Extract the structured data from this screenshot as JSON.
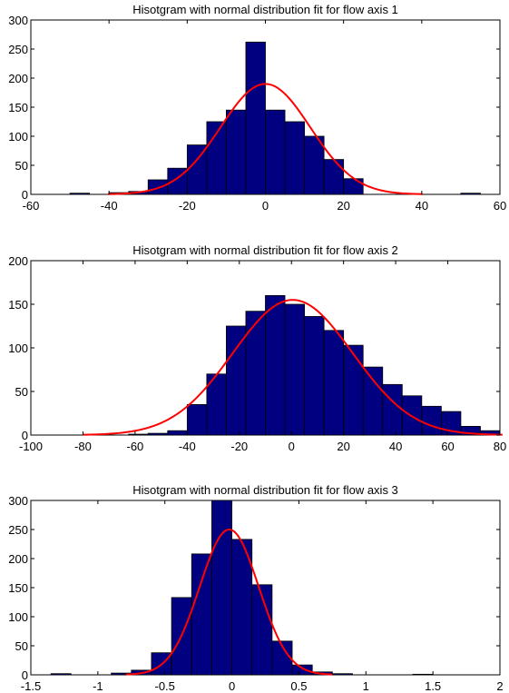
{
  "chart_data": [
    {
      "type": "bar",
      "title": "Hisotgram with normal distribution fit for flow axis 1",
      "xlabel": "",
      "ylabel": "",
      "xlim": [
        -60,
        60
      ],
      "ylim": [
        0,
        300
      ],
      "xticks": [
        "-60",
        "-40",
        "-20",
        "0",
        "20",
        "40",
        "60"
      ],
      "yticks": [
        "0",
        "50",
        "100",
        "150",
        "200",
        "250",
        "300"
      ],
      "bin_edges": [
        -50,
        -45,
        -40,
        -35,
        -30,
        -25,
        -20,
        -15,
        -10,
        -5,
        0,
        5,
        10,
        15,
        20,
        25,
        30,
        35,
        40,
        45,
        50,
        55
      ],
      "values": [
        2,
        0,
        3,
        5,
        25,
        45,
        85,
        125,
        145,
        262,
        145,
        125,
        100,
        60,
        27,
        0,
        0,
        0,
        0,
        0,
        2
      ],
      "fit": {
        "mean": 0,
        "std": 11.5,
        "peak": 190
      },
      "bar_color": "#000080",
      "fit_color": "#ff0000",
      "grid": false
    },
    {
      "type": "bar",
      "title": "Hisotgram with normal distribution fit for flow axis 2",
      "xlabel": "",
      "ylabel": "",
      "xlim": [
        -100,
        80
      ],
      "ylim": [
        0,
        200
      ],
      "xticks": [
        "-100",
        "-80",
        "-60",
        "-40",
        "-20",
        "0",
        "20",
        "40",
        "60",
        "80"
      ],
      "yticks": [
        "0",
        "50",
        "100",
        "150",
        "200"
      ],
      "bin_edges": [
        -62.5,
        -55,
        -47.5,
        -40,
        -32.5,
        -25,
        -17.5,
        -10,
        -2.5,
        5,
        12.5,
        20,
        27.5,
        35,
        42.5,
        50,
        57.5,
        65,
        72.5,
        80
      ],
      "values": [
        1,
        2,
        5,
        35,
        70,
        125,
        142,
        160,
        150,
        136,
        120,
        103,
        78,
        58,
        45,
        33,
        27,
        10,
        5
      ],
      "fit": {
        "mean": 0.5,
        "std": 23,
        "peak": 155
      },
      "bar_color": "#000080",
      "fit_color": "#ff0000",
      "grid": false
    },
    {
      "type": "bar",
      "title": "Hisotgram with normal distribution fit for flow axis 3",
      "xlabel": "",
      "ylabel": "",
      "xlim": [
        -1.5,
        2
      ],
      "ylim": [
        0,
        300
      ],
      "xticks": [
        "-1.5",
        "-1",
        "-0.5",
        "0",
        "0.5",
        "1",
        "1.5",
        "2"
      ],
      "yticks": [
        "0",
        "50",
        "100",
        "150",
        "200",
        "250",
        "300"
      ],
      "bin_edges": [
        -1.35,
        -1.2,
        -1.05,
        -0.9,
        -0.75,
        -0.6,
        -0.45,
        -0.3,
        -0.15,
        0,
        0.15,
        0.3,
        0.45,
        0.6,
        0.75,
        0.9,
        1.05,
        1.2,
        1.35,
        1.5
      ],
      "values": [
        2,
        0,
        0,
        3,
        8,
        38,
        133,
        208,
        300,
        233,
        155,
        58,
        17,
        5,
        2,
        0,
        0,
        0,
        1
      ],
      "fit": {
        "mean": -0.02,
        "std": 0.22,
        "peak": 250
      },
      "bar_color": "#000080",
      "fit_color": "#ff0000",
      "grid": false
    }
  ]
}
